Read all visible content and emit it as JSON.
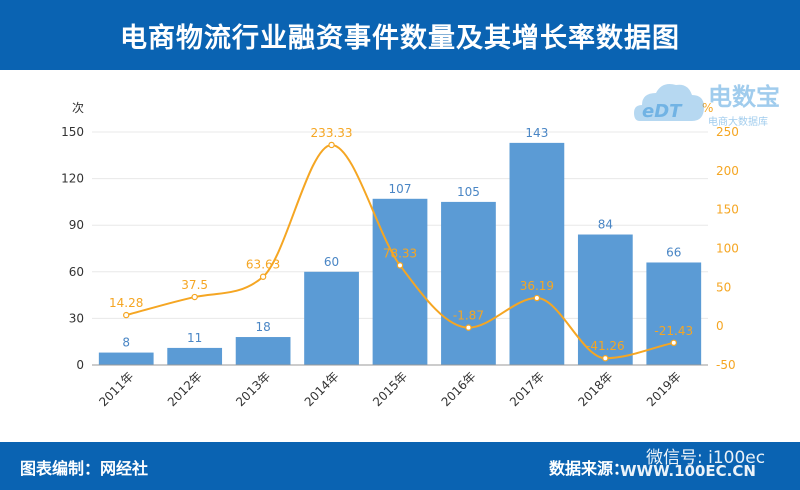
{
  "header": {
    "title": "电商物流行业融资事件数量及其增长率数据图"
  },
  "footer": {
    "credit": "图表编制：网经社",
    "source": "数据来源："
  },
  "watermark": {
    "logo_text": "电数宝",
    "logo_sub": "电商大数据库",
    "logo_mark": "eDT",
    "wechat": "微信号: i100ec",
    "site": "WWW.100EC.CN"
  },
  "colors": {
    "header_bg": "#0a63b2",
    "bar": "#5b9bd5",
    "line": "#f5a623",
    "bar_label": "#4a86c5"
  },
  "chart_data": {
    "type": "bar",
    "categories": [
      "2011年",
      "2012年",
      "2013年",
      "2014年",
      "2015年",
      "2016年",
      "2017年",
      "2018年",
      "2019年"
    ],
    "series": [
      {
        "type": "bar",
        "axis": "left",
        "values": [
          8,
          11,
          18,
          60,
          107,
          105,
          143,
          84,
          66
        ]
      },
      {
        "type": "line",
        "axis": "right",
        "values": [
          14.28,
          37.5,
          63.63,
          233.33,
          78.33,
          -1.87,
          36.19,
          -41.26,
          -21.43
        ]
      }
    ],
    "y_left": {
      "label": "次",
      "ylim": [
        0,
        150
      ],
      "ticks": [
        0,
        30,
        60,
        90,
        120,
        150
      ]
    },
    "y_right": {
      "label": "%",
      "ylim": [
        -50,
        250
      ],
      "ticks": [
        -50,
        0,
        50,
        100,
        150,
        200,
        250
      ]
    },
    "grid": true
  }
}
